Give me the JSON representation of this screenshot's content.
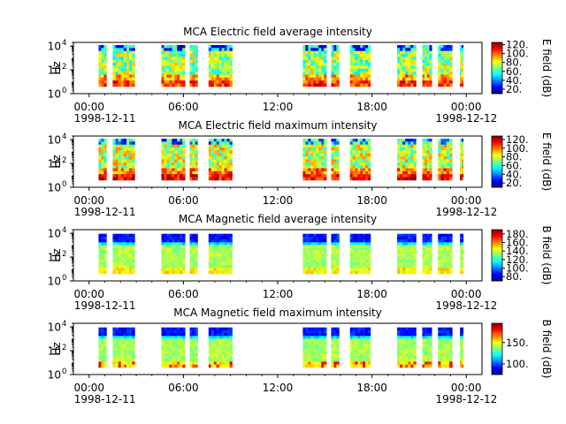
{
  "chart_data": [
    {
      "type": "heatmap",
      "title": "MCA  Electric field average intensity",
      "ylabel": "Hz",
      "yscale": "log",
      "y_ticks": [
        {
          "base": "10",
          "exp": "0"
        },
        {
          "base": "10",
          "exp": "2"
        },
        {
          "base": "10",
          "exp": "4"
        }
      ],
      "ylim": [
        1,
        20000
      ],
      "x_ticks": [
        "00:00",
        "06:00",
        "12:00",
        "18:00",
        "00:00"
      ],
      "x_dates": [
        "1998-12-11",
        "1998-12-12"
      ],
      "xlim_hours": [
        -1,
        25
      ],
      "colorbar_label": "E field (dB)",
      "colorbar_ticks": [
        "20.",
        "40.",
        "60.",
        "80.",
        "100.",
        "120."
      ],
      "colorbar_range": [
        10,
        125
      ],
      "colormap": "jet-like (blue-cyan-green-yellow-red)"
    },
    {
      "type": "heatmap",
      "title": "MCA  Electric field maximum intensity",
      "ylabel": "Hz",
      "yscale": "log",
      "y_ticks": [
        {
          "base": "10",
          "exp": "0"
        },
        {
          "base": "10",
          "exp": "2"
        },
        {
          "base": "10",
          "exp": "4"
        }
      ],
      "ylim": [
        1,
        20000
      ],
      "x_ticks": [
        "00:00",
        "06:00",
        "12:00",
        "18:00",
        "00:00"
      ],
      "x_dates": [
        "1998-12-11",
        "1998-12-12"
      ],
      "xlim_hours": [
        -1,
        25
      ],
      "colorbar_label": "E field (dB)",
      "colorbar_ticks": [
        "20.",
        "40.",
        "60.",
        "80.",
        "100.",
        "120."
      ],
      "colorbar_range": [
        10,
        128
      ],
      "colormap": "jet-like (blue-cyan-green-yellow-red)"
    },
    {
      "type": "heatmap",
      "title": "MCA  Magnetic field average intensity",
      "ylabel": "Hz",
      "yscale": "log",
      "y_ticks": [
        {
          "base": "10",
          "exp": "0"
        },
        {
          "base": "10",
          "exp": "2"
        },
        {
          "base": "10",
          "exp": "4"
        }
      ],
      "ylim": [
        1,
        20000
      ],
      "x_ticks": [
        "00:00",
        "06:00",
        "12:00",
        "18:00",
        "00:00"
      ],
      "x_dates": [
        "1998-12-11",
        "1998-12-12"
      ],
      "xlim_hours": [
        -1,
        25
      ],
      "colorbar_label": "B field (dB)",
      "colorbar_ticks": [
        "80.",
        "100.",
        "120.",
        "140.",
        "160.",
        "180."
      ],
      "colorbar_range": [
        70,
        190
      ],
      "colormap": "jet-like (blue-cyan-green-yellow-red)"
    },
    {
      "type": "heatmap",
      "title": "MCA  Magnetic field maximum intensity",
      "ylabel": "Hz",
      "yscale": "log",
      "y_ticks": [
        {
          "base": "10",
          "exp": "0"
        },
        {
          "base": "10",
          "exp": "2"
        },
        {
          "base": "10",
          "exp": "4"
        }
      ],
      "ylim": [
        1,
        20000
      ],
      "x_ticks": [
        "00:00",
        "06:00",
        "12:00",
        "18:00",
        "00:00"
      ],
      "x_dates": [
        "1998-12-11",
        "1998-12-12"
      ],
      "xlim_hours": [
        -1,
        25
      ],
      "colorbar_label": "B field (dB)",
      "colorbar_ticks": [
        "100.",
        "150."
      ],
      "colorbar_range": [
        75,
        195
      ],
      "colormap": "jet-like (blue-cyan-green-yellow-red)"
    }
  ],
  "data_segments_hours": [
    [
      0.6,
      1.1
    ],
    [
      1.5,
      2.9
    ],
    [
      4.6,
      6.1
    ],
    [
      6.4,
      6.9
    ],
    [
      7.6,
      9.1
    ],
    [
      13.6,
      15.1
    ],
    [
      15.4,
      15.9
    ],
    [
      16.6,
      17.9
    ],
    [
      19.6,
      20.8
    ],
    [
      21.2,
      21.8
    ],
    [
      22.2,
      23.1
    ],
    [
      23.6,
      23.8
    ]
  ]
}
